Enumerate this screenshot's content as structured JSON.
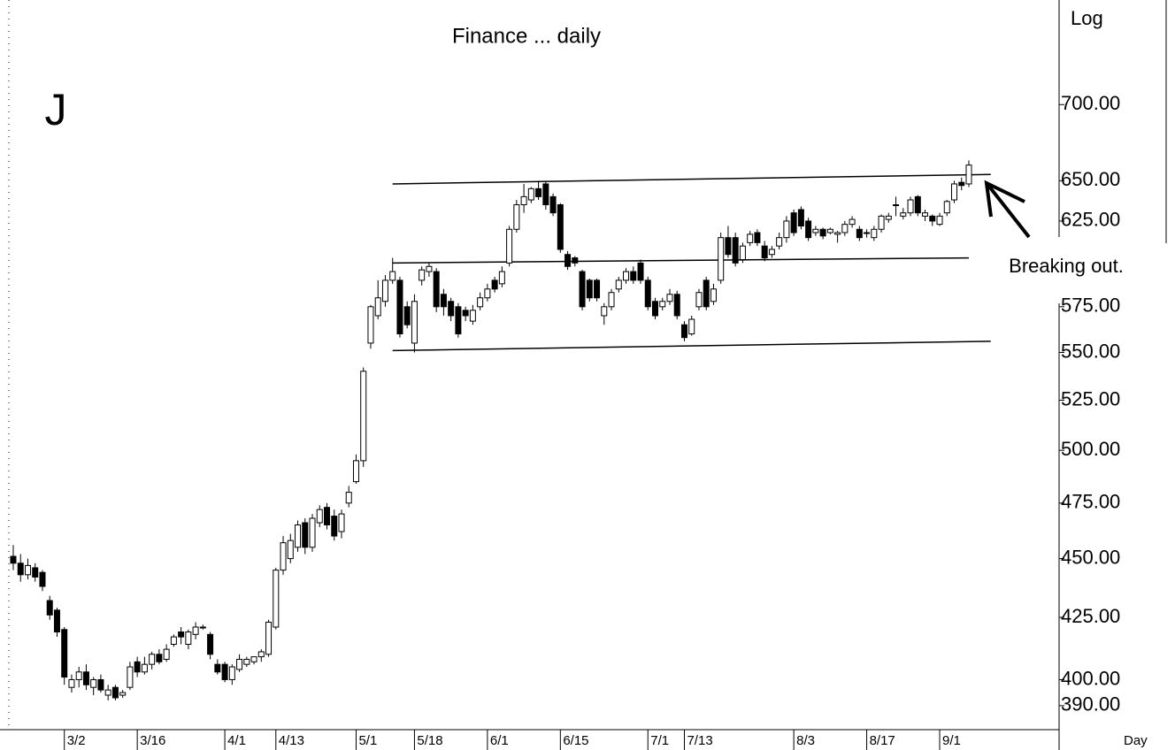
{
  "chart_data": {
    "type": "candlestick",
    "title": "Finance ... daily",
    "annotation": "J",
    "axis_label_y": "Log",
    "axis_label_x": "Day",
    "callout": "Breaking out.",
    "log_scale": true,
    "ylim": [
      381,
      775
    ],
    "yticks": [
      {
        "value": 390,
        "label": "390.00"
      },
      {
        "value": 400,
        "label": "400.00"
      },
      {
        "value": 425,
        "label": "425.00"
      },
      {
        "value": 450,
        "label": "450.00"
      },
      {
        "value": 475,
        "label": "475.00"
      },
      {
        "value": 500,
        "label": "500.00"
      },
      {
        "value": 525,
        "label": "525.00"
      },
      {
        "value": 550,
        "label": "550.00"
      },
      {
        "value": 575,
        "label": "575.00"
      },
      {
        "value": 625,
        "label": "625.00"
      },
      {
        "value": 650,
        "label": "650.00"
      },
      {
        "value": 700,
        "label": "700.00"
      }
    ],
    "up_color": "#ffffff",
    "down_color": "#000000",
    "categories": [
      null,
      null,
      null,
      null,
      null,
      null,
      null,
      "3/2",
      null,
      null,
      null,
      null,
      null,
      null,
      null,
      null,
      null,
      "3/16",
      null,
      null,
      null,
      null,
      null,
      null,
      null,
      null,
      null,
      null,
      null,
      "4/1",
      null,
      null,
      null,
      null,
      null,
      null,
      "4/13",
      null,
      null,
      null,
      null,
      null,
      null,
      null,
      null,
      null,
      null,
      "5/1",
      null,
      null,
      null,
      null,
      null,
      null,
      null,
      "5/18",
      null,
      null,
      null,
      null,
      null,
      null,
      null,
      null,
      null,
      "6/1",
      null,
      null,
      null,
      null,
      null,
      null,
      null,
      null,
      null,
      "6/15",
      null,
      null,
      null,
      null,
      null,
      null,
      null,
      null,
      null,
      null,
      null,
      "7/1",
      null,
      null,
      null,
      null,
      "7/13",
      null,
      null,
      null,
      null,
      null,
      null,
      null,
      null,
      null,
      null,
      null,
      null,
      null,
      null,
      "8/3",
      null,
      null,
      null,
      null,
      null,
      null,
      null,
      null,
      null,
      "8/17",
      null,
      null,
      null,
      null,
      null,
      null,
      null,
      null,
      null,
      "9/1",
      null,
      null,
      null,
      null
    ],
    "ohlc": [
      [
        451,
        456,
        445,
        448
      ],
      [
        448,
        452,
        440,
        443
      ],
      [
        443,
        450,
        441,
        447
      ],
      [
        446,
        448,
        440,
        442
      ],
      [
        444,
        445,
        436,
        438
      ],
      [
        432,
        434,
        424,
        426
      ],
      [
        428,
        429,
        417,
        419
      ],
      [
        420,
        421,
        398,
        401
      ],
      [
        397,
        402,
        395,
        400
      ],
      [
        400,
        405,
        397,
        403
      ],
      [
        403,
        406,
        396,
        398
      ],
      [
        397,
        401,
        394,
        400
      ],
      [
        400,
        402,
        395,
        396
      ],
      [
        394,
        398,
        392,
        396
      ],
      [
        397,
        398,
        392,
        393
      ],
      [
        394,
        396,
        393,
        395
      ],
      [
        397,
        407,
        396,
        405
      ],
      [
        407,
        409,
        401,
        403
      ],
      [
        403,
        409,
        402,
        406
      ],
      [
        406,
        411,
        404,
        410
      ],
      [
        410,
        412,
        406,
        407
      ],
      [
        408,
        414,
        407,
        412
      ],
      [
        414,
        418,
        413,
        417
      ],
      [
        419,
        421,
        414,
        417
      ],
      [
        414,
        420,
        412,
        419
      ],
      [
        418,
        423,
        416,
        421
      ],
      [
        421,
        422,
        420,
        421
      ],
      [
        418,
        419,
        408,
        410
      ],
      [
        406,
        408,
        402,
        403
      ],
      [
        406,
        407,
        399,
        400
      ],
      [
        400,
        406,
        398,
        405
      ],
      [
        404,
        410,
        403,
        408
      ],
      [
        406,
        409,
        405,
        408
      ],
      [
        407,
        409,
        406,
        409
      ],
      [
        409,
        412,
        407,
        411
      ],
      [
        410,
        424,
        409,
        423
      ],
      [
        421,
        446,
        420,
        445
      ],
      [
        445,
        460,
        443,
        457
      ],
      [
        450,
        461,
        448,
        458
      ],
      [
        455,
        467,
        453,
        465
      ],
      [
        466,
        468,
        452,
        455
      ],
      [
        455,
        470,
        453,
        468
      ],
      [
        466,
        474,
        464,
        472
      ],
      [
        473,
        475,
        463,
        465
      ],
      [
        469,
        472,
        458,
        460
      ],
      [
        462,
        472,
        459,
        470
      ],
      [
        475,
        483,
        473,
        480
      ],
      [
        485,
        498,
        484,
        495
      ],
      [
        495,
        542,
        492,
        540
      ],
      [
        555,
        576,
        552,
        575
      ],
      [
        570,
        590,
        568,
        580
      ],
      [
        578,
        593,
        575,
        590
      ],
      [
        590,
        603,
        588,
        595
      ],
      [
        590,
        592,
        558,
        560
      ],
      [
        575,
        578,
        563,
        565
      ],
      [
        555,
        582,
        550,
        578
      ],
      [
        590,
        598,
        587,
        596
      ],
      [
        595,
        600,
        592,
        598
      ],
      [
        595,
        597,
        572,
        575
      ],
      [
        582,
        585,
        570,
        575
      ],
      [
        578,
        580,
        567,
        570
      ],
      [
        575,
        577,
        558,
        560
      ],
      [
        573,
        575,
        567,
        570
      ],
      [
        567,
        576,
        565,
        573
      ],
      [
        575,
        583,
        573,
        580
      ],
      [
        580,
        588,
        578,
        585
      ],
      [
        590,
        592,
        583,
        585
      ],
      [
        588,
        598,
        586,
        595
      ],
      [
        600,
        622,
        598,
        620
      ],
      [
        620,
        638,
        618,
        635
      ],
      [
        635,
        648,
        630,
        640
      ],
      [
        638,
        646,
        636,
        645
      ],
      [
        645,
        650,
        638,
        640
      ],
      [
        648,
        650,
        632,
        635
      ],
      [
        640,
        642,
        628,
        630
      ],
      [
        635,
        636,
        606,
        608
      ],
      [
        605,
        607,
        596,
        598
      ],
      [
        603,
        604,
        598,
        600
      ],
      [
        595,
        596,
        573,
        575
      ],
      [
        590,
        591,
        578,
        580
      ],
      [
        590,
        591,
        578,
        580
      ],
      [
        570,
        577,
        565,
        575
      ],
      [
        575,
        585,
        573,
        583
      ],
      [
        585,
        592,
        583,
        590
      ],
      [
        590,
        597,
        588,
        595
      ],
      [
        595,
        598,
        588,
        590
      ],
      [
        600,
        602,
        588,
        590
      ],
      [
        590,
        592,
        573,
        575
      ],
      [
        578,
        580,
        568,
        570
      ],
      [
        575,
        580,
        573,
        578
      ],
      [
        578,
        585,
        576,
        582
      ],
      [
        582,
        584,
        568,
        570
      ],
      [
        565,
        567,
        556,
        558
      ],
      [
        560,
        570,
        559,
        568
      ],
      [
        575,
        585,
        573,
        583
      ],
      [
        590,
        592,
        573,
        575
      ],
      [
        578,
        588,
        576,
        585
      ],
      [
        590,
        618,
        588,
        615
      ],
      [
        615,
        622,
        603,
        605
      ],
      [
        615,
        618,
        598,
        600
      ],
      [
        602,
        612,
        600,
        610
      ],
      [
        612,
        619,
        610,
        617
      ],
      [
        618,
        620,
        610,
        612
      ],
      [
        610,
        613,
        601,
        603
      ],
      [
        605,
        610,
        603,
        608
      ],
      [
        610,
        618,
        608,
        615
      ],
      [
        615,
        628,
        612,
        625
      ],
      [
        630,
        632,
        616,
        618
      ],
      [
        632,
        634,
        620,
        622
      ],
      [
        625,
        627,
        613,
        615
      ],
      [
        618,
        622,
        616,
        620
      ],
      [
        620,
        621,
        614,
        616
      ],
      [
        618,
        621,
        617,
        620
      ],
      [
        617,
        619,
        612,
        618
      ],
      [
        618,
        625,
        616,
        623
      ],
      [
        623,
        628,
        621,
        626
      ],
      [
        620,
        622,
        613,
        615
      ],
      [
        618,
        620,
        615,
        618
      ],
      [
        615,
        622,
        613,
        620
      ],
      [
        620,
        629,
        618,
        628
      ],
      [
        626,
        630,
        624,
        628
      ],
      [
        635,
        640,
        628,
        635
      ],
      [
        628,
        633,
        626,
        630
      ],
      [
        630,
        640,
        628,
        638
      ],
      [
        640,
        641,
        628,
        630
      ],
      [
        628,
        632,
        625,
        630
      ],
      [
        628,
        629,
        622,
        625
      ],
      [
        623,
        630,
        622,
        628
      ],
      [
        630,
        638,
        628,
        637
      ],
      [
        638,
        650,
        636,
        648
      ],
      [
        649,
        652,
        644,
        647
      ],
      [
        648,
        663,
        646,
        660
      ]
    ],
    "trendlines": [
      [
        [
          52,
          648
        ],
        [
          134,
          654
        ]
      ],
      [
        [
          52,
          600
        ],
        [
          131,
          603
        ]
      ],
      [
        [
          52,
          551
        ],
        [
          134,
          556
        ]
      ]
    ]
  }
}
